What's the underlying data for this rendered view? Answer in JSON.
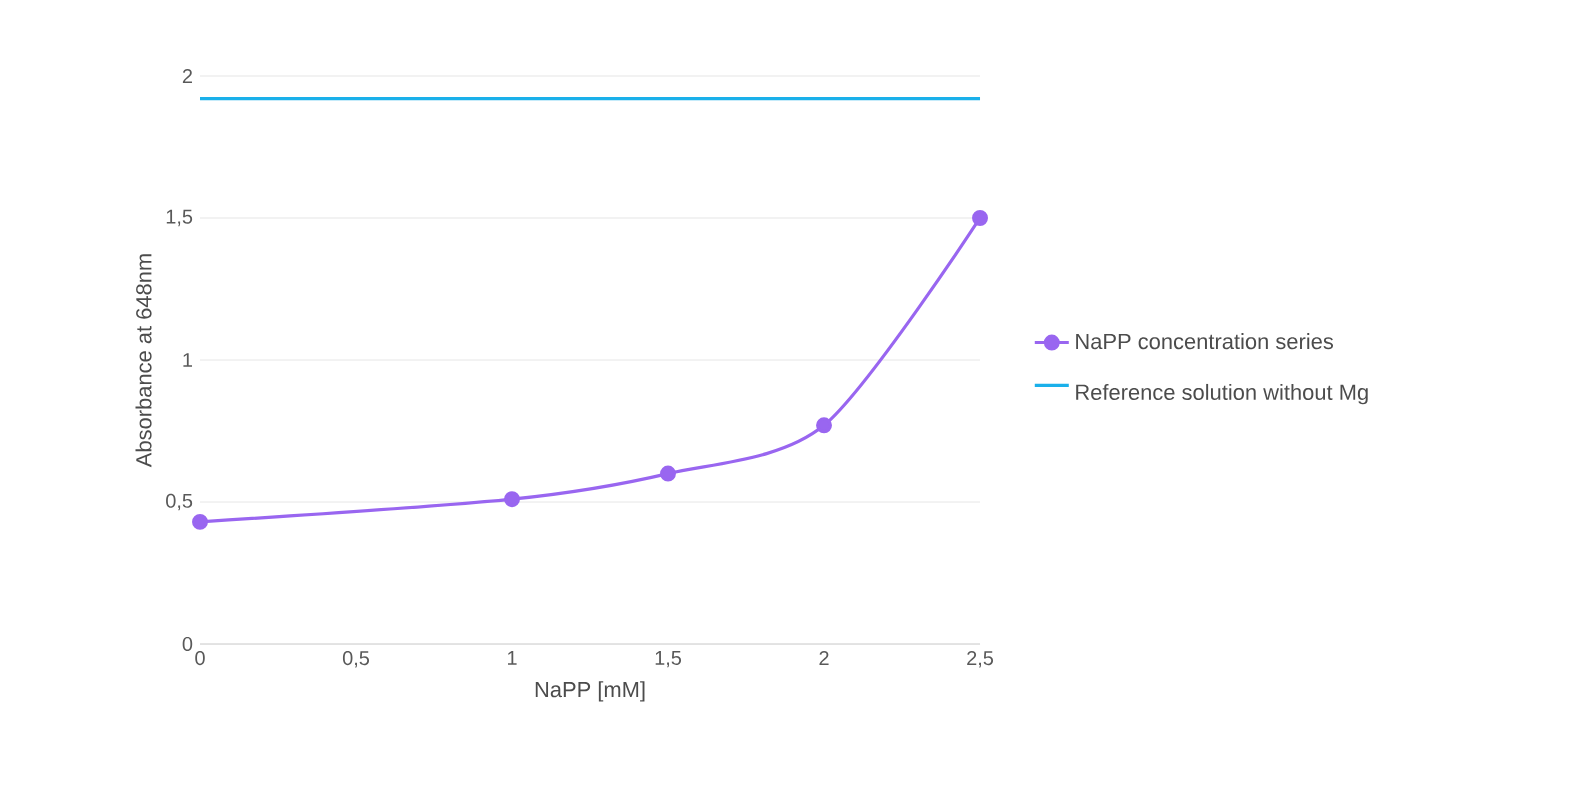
{
  "chart_data": {
    "type": "line",
    "xlabel": "NaPP [mM]",
    "ylabel": "Absorbance at 648nm",
    "x": [
      0,
      1,
      1.5,
      2,
      2.5
    ],
    "series": [
      {
        "name": "NaPP concentration series",
        "color": "#9966f0",
        "values": [
          0.43,
          0.51,
          0.6,
          0.77,
          1.5
        ]
      }
    ],
    "ref_lines": [
      {
        "axis": "y",
        "value": 1.92,
        "label": "Reference solution without Mg",
        "color": "#1ab0ea"
      }
    ],
    "xlim": [
      0,
      2.5
    ],
    "xticks": [
      0,
      {
        "value": 0.5,
        "label": "0,5"
      },
      1,
      {
        "value": 1.5,
        "label": "1,5"
      },
      2,
      {
        "value": 2.5,
        "label": "2,5"
      }
    ],
    "ylim": [
      0,
      2
    ],
    "yticks": [
      0,
      {
        "value": 0.5,
        "label": "0,5"
      },
      1,
      {
        "value": 1.5,
        "label": "1,5"
      },
      2
    ],
    "grid": "y",
    "legend": "right",
    "marker": "circle",
    "line_style": "solid"
  }
}
